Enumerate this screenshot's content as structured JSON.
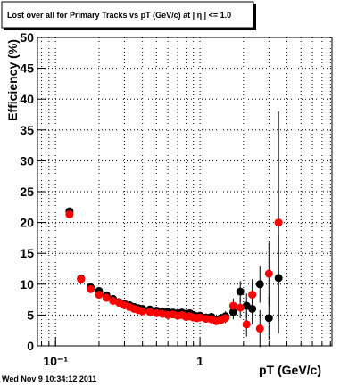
{
  "chart_data": {
    "type": "scatter",
    "title": "Lost over all for Primary Tracks vs pT (GeV/c) at |  η | <= 1.0",
    "xlabel": "pT (GeV/c)",
    "ylabel": "Efficiency (%)",
    "footer": "Wed Nov  9 10:34:12 2011",
    "x": [
      0.125,
      0.15,
      0.175,
      0.2,
      0.225,
      0.25,
      0.275,
      0.3,
      0.325,
      0.35,
      0.375,
      0.4,
      0.45,
      0.5,
      0.55,
      0.6,
      0.65,
      0.7,
      0.75,
      0.8,
      0.85,
      0.9,
      0.95,
      1.0,
      1.1,
      1.2,
      1.3,
      1.4,
      1.5,
      1.7,
      1.9,
      2.1,
      2.3,
      2.6,
      3.0,
      3.5
    ],
    "series": [
      {
        "color": "#000000",
        "values": [
          21.8,
          10.9,
          9.5,
          8.9,
          8.2,
          7.6,
          7.1,
          6.8,
          6.6,
          6.3,
          6.1,
          6.0,
          5.9,
          5.7,
          5.6,
          5.5,
          5.4,
          5.3,
          5.4,
          5.2,
          5.3,
          5.0,
          4.8,
          4.9,
          4.6,
          4.7,
          4.2,
          4.5,
          4.8,
          5.5,
          8.8,
          6.5,
          6.0,
          10.0,
          4.5,
          11.0
        ],
        "errors": [
          0.5,
          0.6,
          0.4,
          0.3,
          0.3,
          0.3,
          0.3,
          0.3,
          0.3,
          0.3,
          0.3,
          0.3,
          0.3,
          0.3,
          0.3,
          0.3,
          0.3,
          0.3,
          0.3,
          0.3,
          0.3,
          0.4,
          0.4,
          0.4,
          0.5,
          0.5,
          0.6,
          0.7,
          0.8,
          1.2,
          1.7,
          2.0,
          2.5,
          3.0,
          3.5,
          7.0
        ]
      },
      {
        "color": "#ff0000",
        "values": [
          21.3,
          10.8,
          9.2,
          8.3,
          7.8,
          7.3,
          7.0,
          6.6,
          6.3,
          6.0,
          5.8,
          5.6,
          5.5,
          5.3,
          5.2,
          5.0,
          5.1,
          4.9,
          5.0,
          4.7,
          4.8,
          4.6,
          4.5,
          4.6,
          4.4,
          4.3,
          4.0,
          4.2,
          4.5,
          6.5,
          6.2,
          3.5,
          8.3,
          2.8,
          11.7,
          20.0
        ],
        "errors": [
          0.5,
          0.6,
          0.4,
          0.3,
          0.3,
          0.3,
          0.3,
          0.3,
          0.3,
          0.3,
          0.3,
          0.3,
          0.3,
          0.3,
          0.3,
          0.3,
          0.3,
          0.3,
          0.3,
          0.3,
          0.3,
          0.4,
          0.4,
          0.4,
          0.5,
          0.5,
          0.6,
          0.7,
          0.8,
          1.2,
          1.7,
          2.0,
          2.5,
          3.0,
          5.0,
          18.0
        ]
      }
    ],
    "xlog": true,
    "xlim": [
      0.075,
      8.2
    ],
    "ylim": [
      0,
      50
    ],
    "xticks": [
      {
        "value": 0.1,
        "label": "10⁻¹"
      },
      1
    ],
    "xgrid": [
      0.08,
      0.09,
      0.1,
      0.2,
      0.3,
      0.4,
      0.5,
      0.6,
      0.7,
      0.8,
      0.9,
      1,
      2,
      3,
      4,
      5,
      6,
      7,
      8
    ],
    "yticks": [
      0,
      5,
      10,
      15,
      20,
      25,
      30,
      35,
      40,
      45,
      50
    ],
    "grid": true
  }
}
